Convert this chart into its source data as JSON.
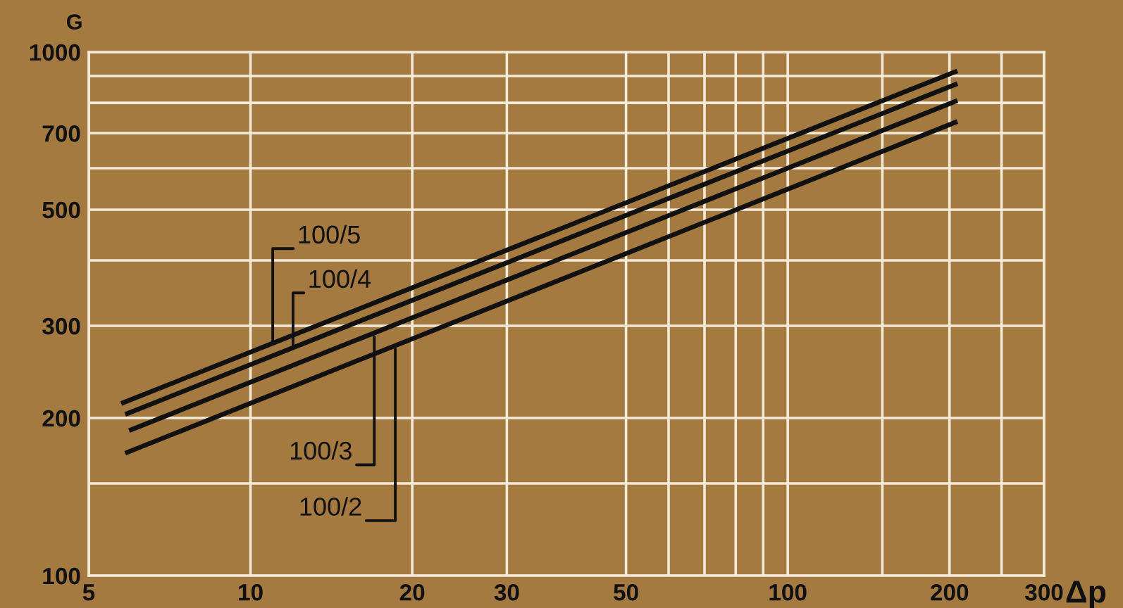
{
  "chart_data": {
    "type": "line",
    "xlabel": "Δp",
    "ylabel": "G",
    "xlim": [
      5,
      300
    ],
    "ylim": [
      100,
      1000
    ],
    "log": "xy",
    "grid": true,
    "legend": false,
    "marker": "none",
    "line_style": "solid",
    "xticks": [
      5,
      10,
      20,
      30,
      50,
      {
        "value": 60,
        "label": null
      },
      {
        "value": 70,
        "label": null
      },
      {
        "value": 80,
        "label": null
      },
      {
        "value": 90,
        "label": null
      },
      100,
      {
        "value": 150,
        "label": null
      },
      200,
      {
        "value": 250,
        "label": null
      },
      300
    ],
    "yticks": [
      100,
      {
        "value": 150,
        "label": null
      },
      200,
      300,
      {
        "value": 400,
        "label": null
      },
      500,
      {
        "value": 600,
        "label": null
      },
      700,
      {
        "value": 800,
        "label": null
      },
      {
        "value": 900,
        "label": null
      },
      1000
    ],
    "series": [
      {
        "color": "#111111",
        "x": [
          5.8,
          205
        ],
        "values": [
          214,
          917
        ]
      },
      {
        "color": "#111111",
        "x": [
          5.9,
          205
        ],
        "values": [
          204,
          867
        ]
      },
      {
        "color": "#111111",
        "x": [
          6.0,
          205
        ],
        "values": [
          190,
          805
        ]
      },
      {
        "color": "#111111",
        "x": [
          5.9,
          205
        ],
        "values": [
          172,
          734
        ]
      }
    ],
    "annotations": [
      {
        "text": "100/5",
        "x": 11.0,
        "y": 280
      },
      {
        "text": "100/4",
        "x": 12,
        "y": 274
      },
      {
        "text": "100/3",
        "x": 17,
        "y": 286
      },
      {
        "text": "100/2",
        "x": 18.6,
        "y": 271
      }
    ]
  }
}
